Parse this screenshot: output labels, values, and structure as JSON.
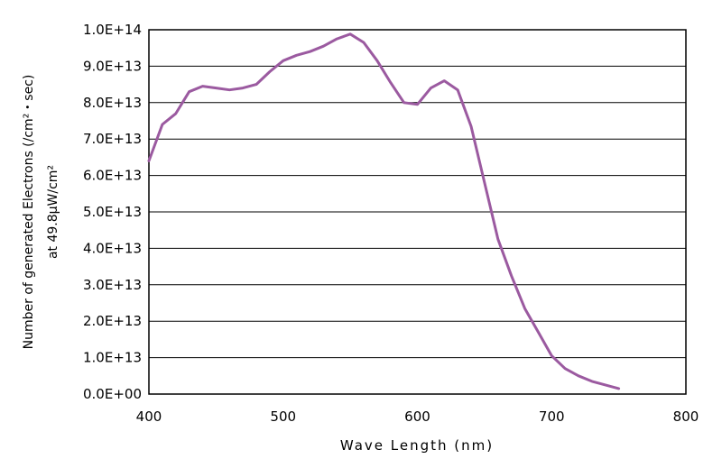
{
  "chart_data": {
    "type": "line",
    "title": "",
    "xlabel": "Wave Length (nm)",
    "ylabel_line1": "Number of generated Electrons (/cm²・sec)",
    "ylabel_line2": "at 49.8μW/cm²",
    "xlim": [
      400,
      800
    ],
    "ylim": [
      0,
      100000000000000.0
    ],
    "x_ticks": [
      400,
      500,
      600,
      700,
      800
    ],
    "x_tick_labels": [
      "400",
      "500",
      "600",
      "700",
      "800"
    ],
    "y_ticks": [
      0,
      10000000000000.0,
      20000000000000.0,
      30000000000000.0,
      40000000000000.0,
      50000000000000.0,
      60000000000000.0,
      70000000000000.0,
      80000000000000.0,
      90000000000000.0,
      100000000000000.0
    ],
    "y_tick_labels": [
      "0.0E+00",
      "1.0E+13",
      "2.0E+13",
      "3.0E+13",
      "4.0E+13",
      "5.0E+13",
      "6.0E+13",
      "7.0E+13",
      "8.0E+13",
      "9.0E+13",
      "1.0E+14"
    ],
    "grid": "horizontal",
    "line_color": "#9b5aa0",
    "series": [
      {
        "x": [
          400,
          410,
          420,
          430,
          440,
          450,
          460,
          470,
          480,
          490,
          500,
          510,
          520,
          530,
          540,
          550,
          560,
          570,
          580,
          590,
          600,
          610,
          620,
          630,
          640,
          650,
          660,
          670,
          680,
          690,
          700,
          710,
          720,
          730,
          740,
          750
        ],
        "values": [
          64000000000000.0,
          74000000000000.0,
          77000000000000.0,
          83000000000000.0,
          84500000000000.0,
          84000000000000.0,
          83500000000000.0,
          84000000000000.0,
          85000000000000.0,
          88500000000000.0,
          91500000000000.0,
          93000000000000.0,
          94000000000000.0,
          95500000000000.0,
          97500000000000.0,
          98800000000000.0,
          96500000000000.0,
          91500000000000.0,
          85500000000000.0,
          80000000000000.0,
          79500000000000.0,
          84000000000000.0,
          86000000000000.0,
          83500000000000.0,
          73500000000000.0,
          58000000000000.0,
          42500000000000.0,
          32500000000000.0,
          23500000000000.0,
          17000000000000.0,
          10500000000000.0,
          7000000000000.0,
          5000000000000.0,
          3500000000000.0,
          2500000000000.0,
          1500000000000.0
        ]
      }
    ]
  }
}
